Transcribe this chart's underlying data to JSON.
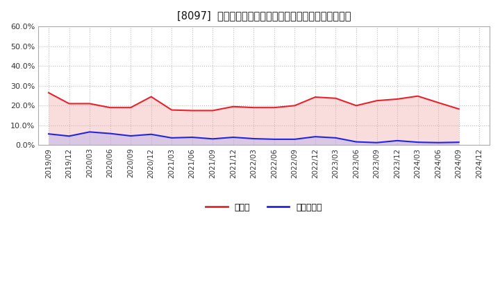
{
  "title": "[8097]  現預金、有利子負債の総資産に対する比率の推移",
  "x_labels": [
    "2019/09",
    "2019/12",
    "2020/03",
    "2020/06",
    "2020/09",
    "2020/12",
    "2021/03",
    "2021/06",
    "2021/09",
    "2021/12",
    "2022/03",
    "2022/06",
    "2022/09",
    "2022/12",
    "2023/03",
    "2023/06",
    "2023/09",
    "2023/12",
    "2024/03",
    "2024/06",
    "2024/09",
    "2024/12"
  ],
  "cash": [
    0.265,
    0.21,
    0.21,
    0.19,
    0.19,
    0.245,
    0.178,
    0.175,
    0.175,
    0.195,
    0.19,
    0.19,
    0.2,
    0.243,
    0.237,
    0.2,
    0.225,
    0.233,
    0.248,
    0.215,
    0.183,
    null
  ],
  "debt": [
    0.057,
    0.046,
    0.067,
    0.059,
    0.047,
    0.055,
    0.037,
    0.04,
    0.032,
    0.04,
    0.033,
    0.03,
    0.03,
    0.043,
    0.037,
    0.017,
    0.013,
    0.023,
    0.015,
    0.013,
    0.015,
    null
  ],
  "cash_color": "#e8212b",
  "debt_color": "#2424e0",
  "fill_cash_color": "#f0a0a0",
  "fill_debt_color": "#a0a0f0",
  "background_color": "#ffffff",
  "plot_bg_color": "#ffffff",
  "grid_color": "#bbbbbb",
  "ylim": [
    0.0,
    0.6
  ],
  "yticks": [
    0.0,
    0.1,
    0.2,
    0.3,
    0.4,
    0.5,
    0.6
  ],
  "legend_cash": "現預金",
  "legend_debt": "有利子負債",
  "title_prefix": "[8097]  ",
  "linewidth": 1.5,
  "fill_alpha": 0.35
}
